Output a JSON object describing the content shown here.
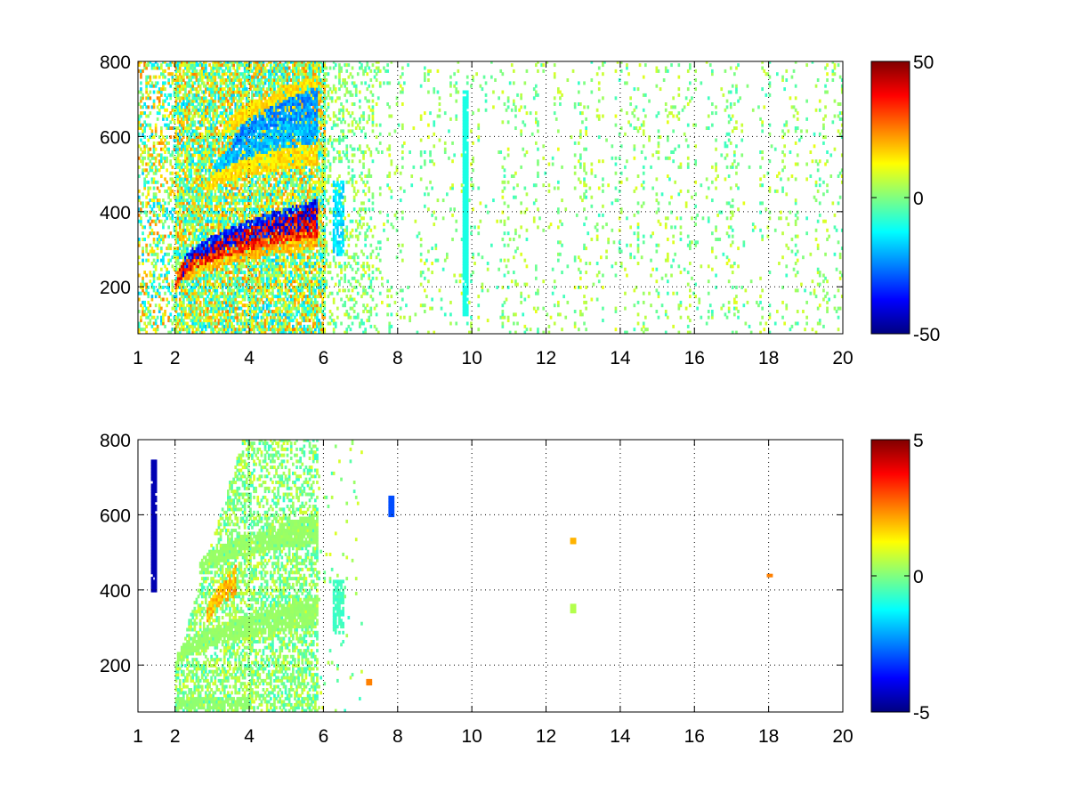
{
  "chart_data": [
    {
      "type": "heatmap",
      "title": "",
      "xlabel": "",
      "ylabel": "",
      "xlim": [
        1,
        20
      ],
      "ylim": [
        75,
        800
      ],
      "x_ticks": [
        1,
        2,
        4,
        6,
        8,
        10,
        12,
        14,
        16,
        18,
        20
      ],
      "y_ticks": [
        200,
        400,
        600,
        800
      ],
      "grid": true,
      "colormap": "jet",
      "clim": [
        -50,
        50
      ],
      "colorbar_ticks": [
        "50",
        "0",
        "-50"
      ],
      "colorbar_values": [
        50,
        0,
        -50
      ],
      "features": [
        {
          "kind": "band",
          "x": [
            2.0,
            5.8
          ],
          "y": [
            205,
            370
          ],
          "value": 45
        },
        {
          "kind": "band",
          "x": [
            2.2,
            5.8
          ],
          "y": [
            240,
            390
          ],
          "value": -45
        },
        {
          "kind": "band",
          "x": [
            2.0,
            5.8
          ],
          "y": [
            195,
            340
          ],
          "value": 25
        },
        {
          "kind": "band",
          "x": [
            2.8,
            5.8
          ],
          "y": [
            450,
            560
          ],
          "value": 20
        },
        {
          "kind": "band",
          "x": [
            3.0,
            5.8
          ],
          "y": [
            490,
            620
          ],
          "value": -25
        },
        {
          "kind": "band",
          "x": [
            3.5,
            5.8
          ],
          "y": [
            560,
            690
          ],
          "value": -30
        },
        {
          "kind": "band",
          "x": [
            3.2,
            5.8
          ],
          "y": [
            590,
            720
          ],
          "value": 20
        },
        {
          "kind": "streak",
          "x": 9.8,
          "y": [
            120,
            720
          ],
          "value": -10
        },
        {
          "kind": "patch",
          "x": [
            6.2,
            6.5
          ],
          "y": [
            280,
            480
          ],
          "value": -20
        }
      ]
    },
    {
      "type": "heatmap",
      "title": "",
      "xlabel": "",
      "ylabel": "",
      "xlim": [
        1,
        20
      ],
      "ylim": [
        75,
        800
      ],
      "x_ticks": [
        1,
        2,
        4,
        6,
        8,
        10,
        12,
        14,
        16,
        18,
        20
      ],
      "y_ticks": [
        200,
        400,
        600,
        800
      ],
      "grid": true,
      "colormap": "jet",
      "clim": [
        -5,
        5
      ],
      "colorbar_ticks": [
        "5",
        "0",
        "-5"
      ],
      "colorbar_values": [
        5,
        0,
        -5
      ],
      "features": [
        {
          "kind": "band",
          "x": [
            2.0,
            5.8
          ],
          "y": [
            200,
            340
          ],
          "value": 0.3
        },
        {
          "kind": "band",
          "x": [
            2.6,
            5.8
          ],
          "y": [
            440,
            560
          ],
          "value": 0.3
        },
        {
          "kind": "band",
          "x": [
            2.8,
            3.6
          ],
          "y": [
            300,
            420
          ],
          "value": 2.5
        },
        {
          "kind": "patch",
          "x": [
            2.0,
            4.0
          ],
          "y": [
            80,
            110
          ],
          "value": 0.2
        },
        {
          "kind": "patch",
          "x": [
            6.2,
            6.5
          ],
          "y": [
            280,
            420
          ],
          "value": -0.8
        },
        {
          "kind": "streak",
          "x": 1.4,
          "y": [
            390,
            740
          ],
          "value": -4.5
        },
        {
          "kind": "spot",
          "x": 7.8,
          "y": [
            600,
            640
          ],
          "value": -3
        },
        {
          "kind": "spot",
          "x": 12.7,
          "y": [
            525,
            530
          ],
          "value": 2
        },
        {
          "kind": "spot",
          "x": 12.7,
          "y": [
            345,
            350
          ],
          "value": 0.5
        },
        {
          "kind": "spot",
          "x": 7.2,
          "y": [
            150,
            150
          ],
          "value": 2.5
        },
        {
          "kind": "spot",
          "x": 18.0,
          "y": [
            435,
            435
          ],
          "value": 2.5
        }
      ]
    }
  ]
}
